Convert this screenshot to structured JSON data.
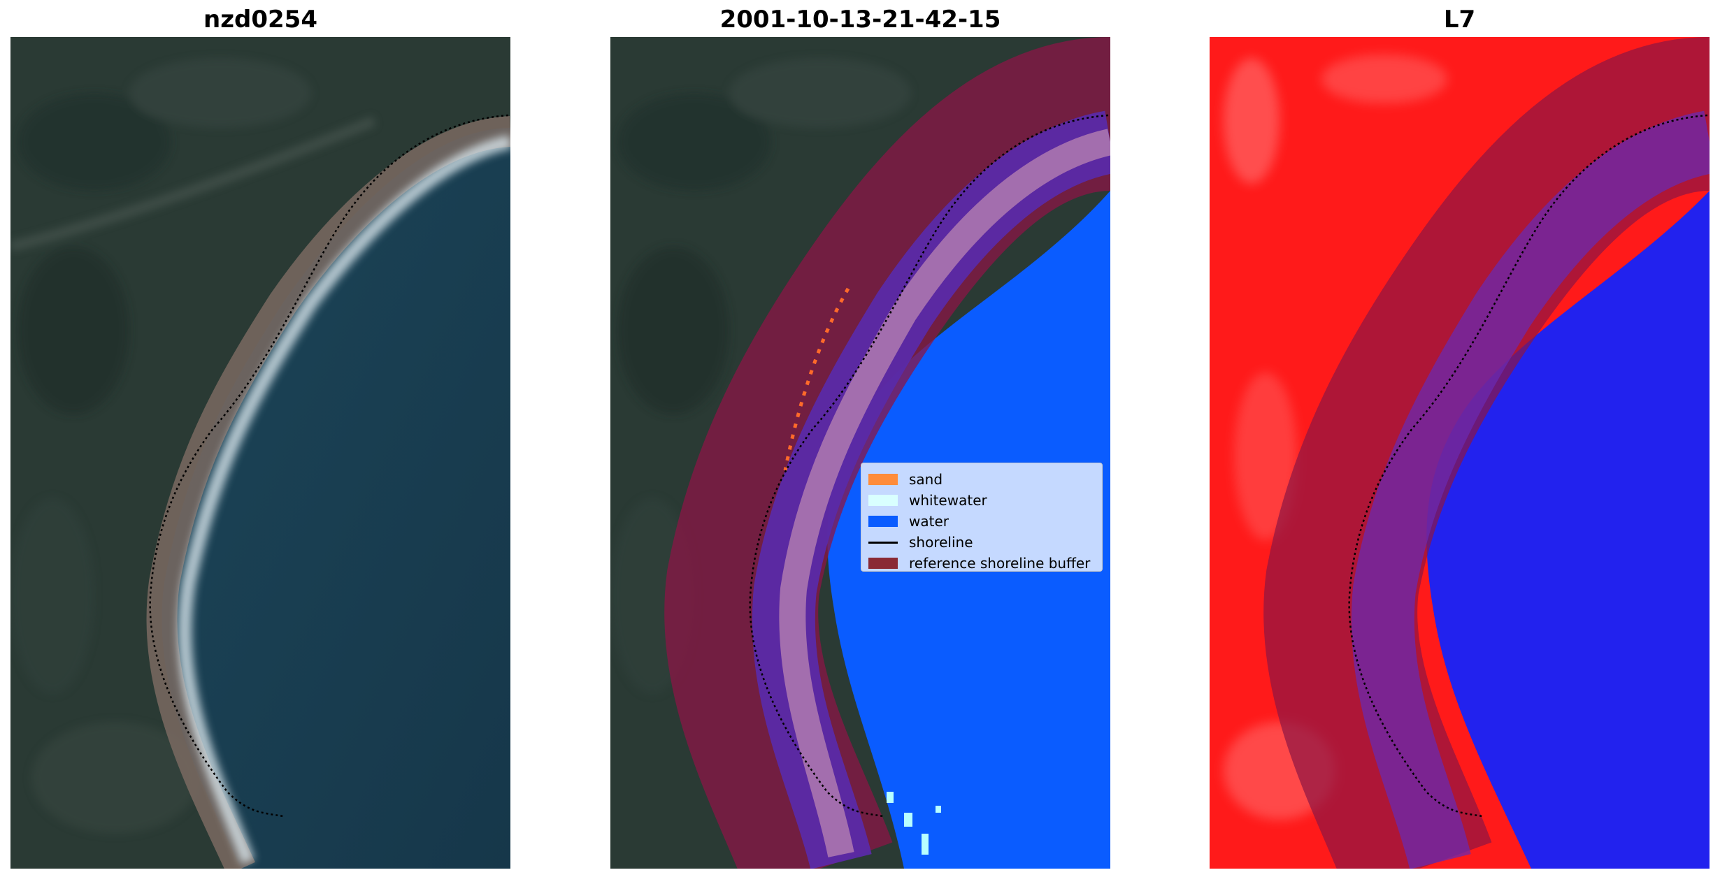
{
  "titles": {
    "left": "nzd0254",
    "middle": "2001-10-13-21-42-15",
    "right": "L7"
  },
  "legend": {
    "items": [
      {
        "label": "sand",
        "color": "#ff8c3a",
        "kind": "patch"
      },
      {
        "label": "whitewater",
        "color": "#d9ffff",
        "kind": "patch"
      },
      {
        "label": "water",
        "color": "#0a5cff",
        "kind": "patch"
      },
      {
        "label": "shoreline",
        "color": "#000000",
        "kind": "line"
      },
      {
        "label": "reference shoreline buffer",
        "color": "#8a2a35",
        "kind": "patch"
      }
    ]
  },
  "colors": {
    "buffer": "#8b1545",
    "water": "#0a5cff",
    "sand": "#ff6a2a",
    "whitewater": "#b8ffff",
    "land_dark": "#2b3a34",
    "sea_dark": "#17384a",
    "index_red": "#ff1a1a",
    "index_blue": "#2222ee"
  }
}
